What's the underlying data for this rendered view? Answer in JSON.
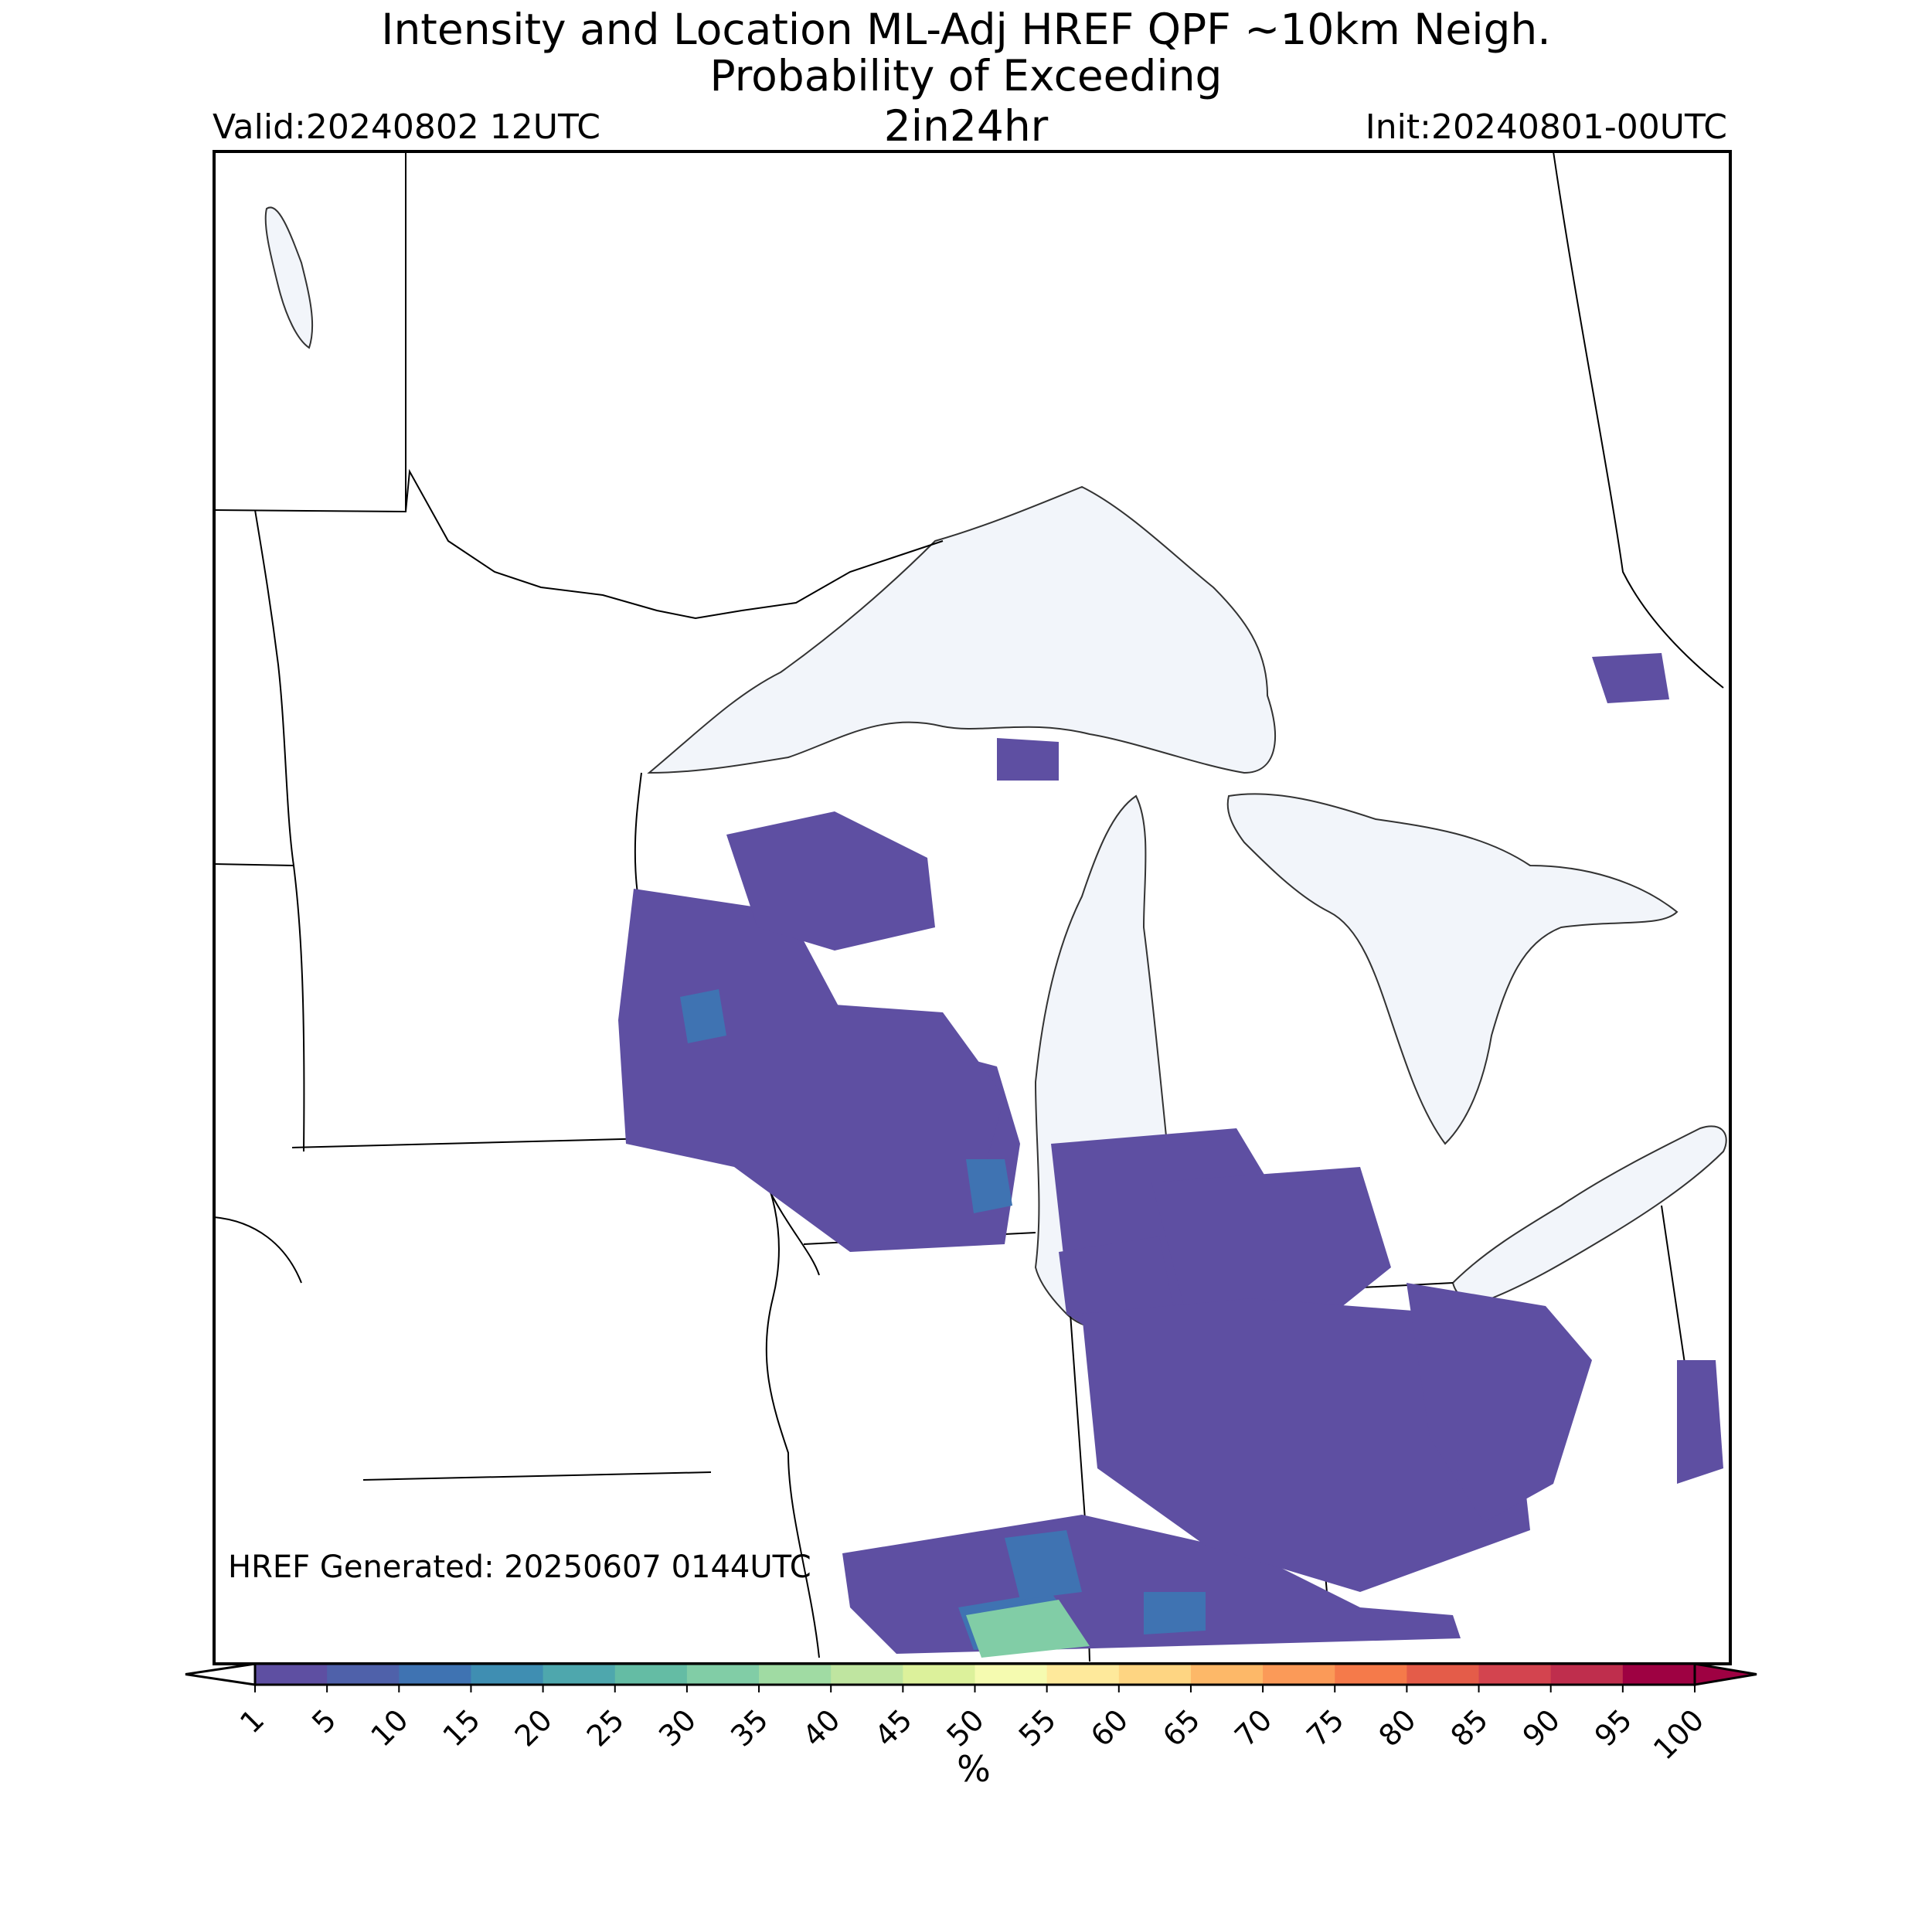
{
  "title": {
    "line1": "Intensity and Location ML-Adj HREF QPF ~10km Neigh.",
    "line2": "Probability of Exceeding",
    "threshold": "2in24hr"
  },
  "valid": "Valid:20240802 12UTC",
  "init": "Init:20240801-00UTC",
  "generated": "HREF Generated: 20250607 0144UTC",
  "colorbar": {
    "label": "%",
    "ticks": [
      "1",
      "5",
      "10",
      "15",
      "20",
      "25",
      "30",
      "35",
      "40",
      "45",
      "50",
      "55",
      "60",
      "65",
      "70",
      "75",
      "80",
      "85",
      "90",
      "95",
      "100"
    ],
    "colors": [
      "#5e4fa2",
      "#4f61aa",
      "#3f73b2",
      "#3f8eb2",
      "#4ea7ad",
      "#64bca4",
      "#81cda6",
      "#a0dba3",
      "#bfe5a0",
      "#dcf19b",
      "#f5fbb0",
      "#fee99b",
      "#fed582",
      "#fdb868",
      "#fb9a58",
      "#f57a4a",
      "#e45c49",
      "#d3444f",
      "#bf2e4d",
      "#9e0142"
    ],
    "under_color": "#ffffff",
    "over_color": "#9e0142"
  },
  "map": {
    "land_color": "#ffffff",
    "water_color": "#f2f5fa",
    "boundary_color": "#000000"
  },
  "regions": {
    "wi_west": [
      [
        820,
        1150
      ],
      [
        1020,
        1180
      ],
      [
        1100,
        1330
      ],
      [
        1290,
        1380
      ],
      [
        1320,
        1480
      ],
      [
        1300,
        1610
      ],
      [
        1100,
        1620
      ],
      [
        950,
        1510
      ],
      [
        810,
        1480
      ],
      [
        800,
        1320
      ]
    ],
    "wi_north": [
      [
        940,
        1080
      ],
      [
        1080,
        1050
      ],
      [
        1200,
        1110
      ],
      [
        1210,
        1200
      ],
      [
        1080,
        1230
      ],
      [
        980,
        1200
      ]
    ],
    "wi_east_core": [
      [
        1080,
        1300
      ],
      [
        1220,
        1310
      ],
      [
        1300,
        1420
      ],
      [
        1260,
        1560
      ],
      [
        1140,
        1560
      ],
      [
        1080,
        1440
      ]
    ],
    "mi_west": [
      [
        1360,
        1480
      ],
      [
        1600,
        1460
      ],
      [
        1660,
        1560
      ],
      [
        1620,
        1680
      ],
      [
        1480,
        1720
      ],
      [
        1380,
        1660
      ]
    ],
    "lake_mi_south": [
      [
        1370,
        1620
      ],
      [
        1500,
        1600
      ],
      [
        1520,
        1700
      ],
      [
        1440,
        1740
      ],
      [
        1380,
        1700
      ]
    ],
    "mi_south": [
      [
        1490,
        1530
      ],
      [
        1760,
        1510
      ],
      [
        1800,
        1640
      ],
      [
        1700,
        1720
      ],
      [
        1540,
        1720
      ]
    ],
    "il_in_south": [
      [
        1090,
        2010
      ],
      [
        1400,
        1960
      ],
      [
        1620,
        2010
      ],
      [
        1760,
        2080
      ],
      [
        1880,
        2090
      ],
      [
        1890,
        2120
      ],
      [
        1160,
        2140
      ],
      [
        1100,
        2080
      ]
    ],
    "in_oh": [
      [
        1400,
        1700
      ],
      [
        1620,
        1680
      ],
      [
        1880,
        1700
      ],
      [
        1960,
        1800
      ],
      [
        1980,
        1980
      ],
      [
        1760,
        2060
      ],
      [
        1560,
        2000
      ],
      [
        1420,
        1900
      ]
    ],
    "oh_east": [
      [
        1820,
        1660
      ],
      [
        2000,
        1690
      ],
      [
        2060,
        1760
      ],
      [
        2010,
        1920
      ],
      [
        1920,
        1970
      ],
      [
        1850,
        1860
      ]
    ],
    "ny_west": [
      [
        2170,
        1760
      ],
      [
        2220,
        1760
      ],
      [
        2230,
        1900
      ],
      [
        2170,
        1920
      ]
    ],
    "on_east_blob": [
      [
        2060,
        850
      ],
      [
        2150,
        845
      ],
      [
        2160,
        905
      ],
      [
        2080,
        910
      ]
    ],
    "wi_small": [
      [
        1290,
        955
      ],
      [
        1370,
        960
      ],
      [
        1370,
        1010
      ],
      [
        1290,
        1010
      ]
    ]
  },
  "hotspots": {
    "wi_west_center": [
      [
        880,
        1290
      ],
      [
        930,
        1280
      ],
      [
        940,
        1340
      ],
      [
        890,
        1350
      ]
    ],
    "wi_east_center": [
      [
        1250,
        1500
      ],
      [
        1300,
        1500
      ],
      [
        1310,
        1560
      ],
      [
        1260,
        1570
      ]
    ],
    "il_south_core": [
      [
        1240,
        2080
      ],
      [
        1360,
        2060
      ],
      [
        1400,
        2120
      ],
      [
        1260,
        2135
      ]
    ],
    "il_south_core2": [
      [
        1300,
        1990
      ],
      [
        1380,
        1980
      ],
      [
        1400,
        2060
      ],
      [
        1320,
        2070
      ]
    ],
    "in_core": [
      [
        1480,
        2060
      ],
      [
        1560,
        2060
      ],
      [
        1560,
        2110
      ],
      [
        1480,
        2115
      ]
    ]
  }
}
